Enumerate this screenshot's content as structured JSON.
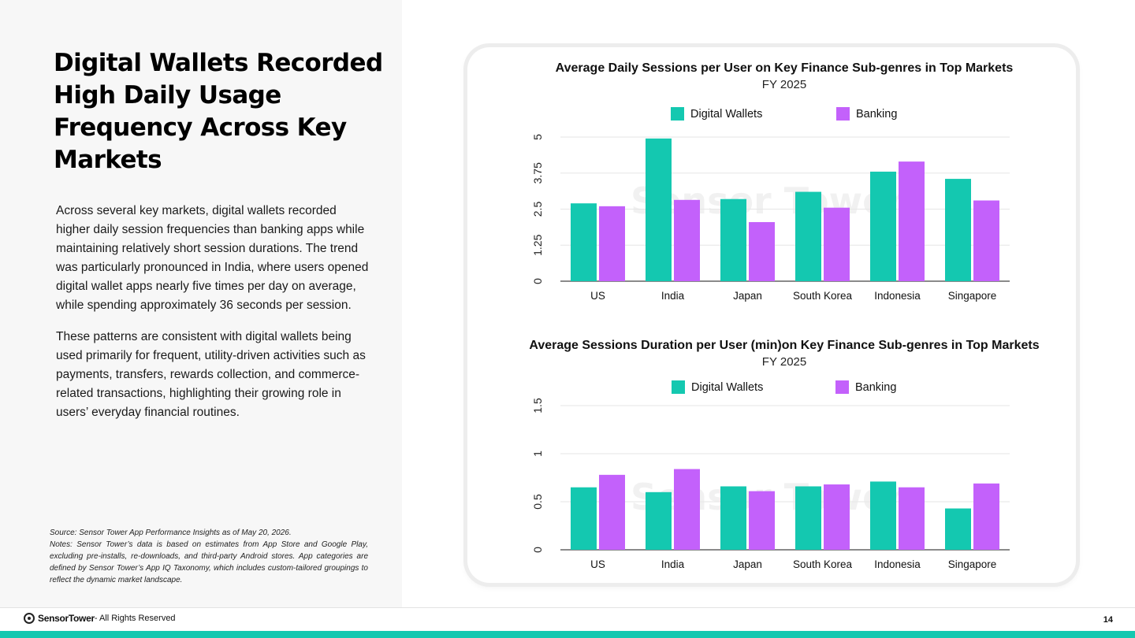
{
  "slide": {
    "title": "Digital Wallets Recorded High Daily Usage Frequency Across Key Markets",
    "paragraphs": [
      "Across several key markets, digital wallets recorded higher daily session frequencies than banking apps while maintaining relatively short session durations. The trend was particularly pronounced in India, where users opened digital wallet apps nearly five times per day on average, while spending approximately 36 seconds per session.",
      "These patterns are consistent with digital wallets being used primarily for frequent, utility-driven activities such as payments, transfers, rewards collection, and commerce-related transactions, highlighting their growing role in users’ everyday financial routines."
    ],
    "source": "Source: Sensor Tower App Performance Insights as of May 20, 2026.",
    "notes": "Notes: Sensor Tower’s data is based on estimates from App Store and Google Play, excluding pre-installs, re-downloads, and third-party Android stores. App categories are defined by Sensor Tower’s App IQ Taxonomy, which includes custom-tailored groupings to reflect the dynamic market landscape.",
    "footer_brand": "SensorTower",
    "footer_rights": " - All Rights Reserved",
    "page_number": "14",
    "watermark": "Sensor Tower"
  },
  "colors": {
    "digital_wallets": "#14c8b0",
    "banking": "#c361fb",
    "accent_bar": "#14c8b0"
  },
  "chart_data": [
    {
      "type": "bar",
      "title": "Average Daily Sessions per User on Key Finance Sub-genres in Top Markets",
      "subtitle": "FY 2025",
      "categories": [
        "US",
        "India",
        "Japan",
        "South Korea",
        "Indonesia",
        "Singapore"
      ],
      "series": [
        {
          "name": "Digital Wallets",
          "values": [
            2.7,
            4.95,
            2.85,
            3.1,
            3.8,
            3.55
          ]
        },
        {
          "name": "Banking",
          "values": [
            2.6,
            2.82,
            2.05,
            2.55,
            4.15,
            2.8
          ]
        }
      ],
      "yticks": [
        "0",
        "1.25",
        "2.5",
        "3.75",
        "5"
      ],
      "ylim": [
        0,
        5
      ],
      "grid": true,
      "legend": "top"
    },
    {
      "type": "bar",
      "title": "Average Sessions Duration per User (min)on Key Finance Sub-genres in Top Markets",
      "subtitle": "FY 2025",
      "categories": [
        "US",
        "India",
        "Japan",
        "South Korea",
        "Indonesia",
        "Singapore"
      ],
      "series": [
        {
          "name": "Digital Wallets",
          "values": [
            0.65,
            0.6,
            0.66,
            0.66,
            0.71,
            0.43
          ]
        },
        {
          "name": "Banking",
          "values": [
            0.78,
            0.84,
            0.61,
            0.68,
            0.65,
            0.69
          ]
        }
      ],
      "yticks": [
        "0",
        "0.5",
        "1",
        "1.5"
      ],
      "ylim": [
        0,
        1.5
      ],
      "grid": true,
      "legend": "top"
    }
  ]
}
